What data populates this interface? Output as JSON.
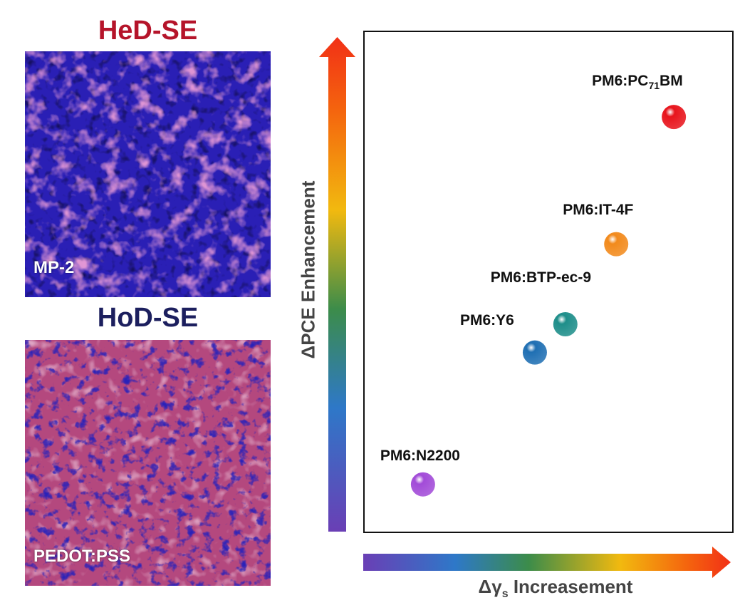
{
  "panels": {
    "top": {
      "title": "HeD-SE",
      "title_color": "#b5142a",
      "image_label": "MP-2"
    },
    "bottom": {
      "title": "HoD-SE",
      "title_color": "#1c1f5e",
      "image_label": "PEDOT:PSS"
    }
  },
  "axes": {
    "y_label": "ΔPCE Enhancement",
    "x_label_prefix": "Δγ",
    "x_label_sub": "s",
    "x_label_suffix": " Increasement",
    "arrow_gradient": [
      "#6a3fb5",
      "#2e78c8",
      "#3c8c4a",
      "#f2b90f",
      "#f4650e",
      "#f23016"
    ]
  },
  "chart_data": {
    "type": "scatter",
    "xlabel": "Δγs Increasement",
    "ylabel": "ΔPCE Enhancement",
    "points": [
      {
        "label_main": "PM6:PC",
        "label_sub": "71",
        "label_tail": "BM",
        "x": 0.87,
        "y": 0.85,
        "color": "#e8141c"
      },
      {
        "label_main": "PM6:IT-4F",
        "label_sub": "",
        "label_tail": "",
        "x": 0.7,
        "y": 0.58,
        "color": "#f28a1c"
      },
      {
        "label_main": "PM6:BTP-ec-9",
        "label_sub": "",
        "label_tail": "",
        "x": 0.55,
        "y": 0.41,
        "color": "#1e8e8a"
      },
      {
        "label_main": "PM6:Y6",
        "label_sub": "",
        "label_tail": "",
        "x": 0.46,
        "y": 0.35,
        "color": "#1f6fb3"
      },
      {
        "label_main": "PM6:N2200",
        "label_sub": "",
        "label_tail": "",
        "x": 0.13,
        "y": 0.07,
        "color": "#a24bd8"
      }
    ]
  }
}
